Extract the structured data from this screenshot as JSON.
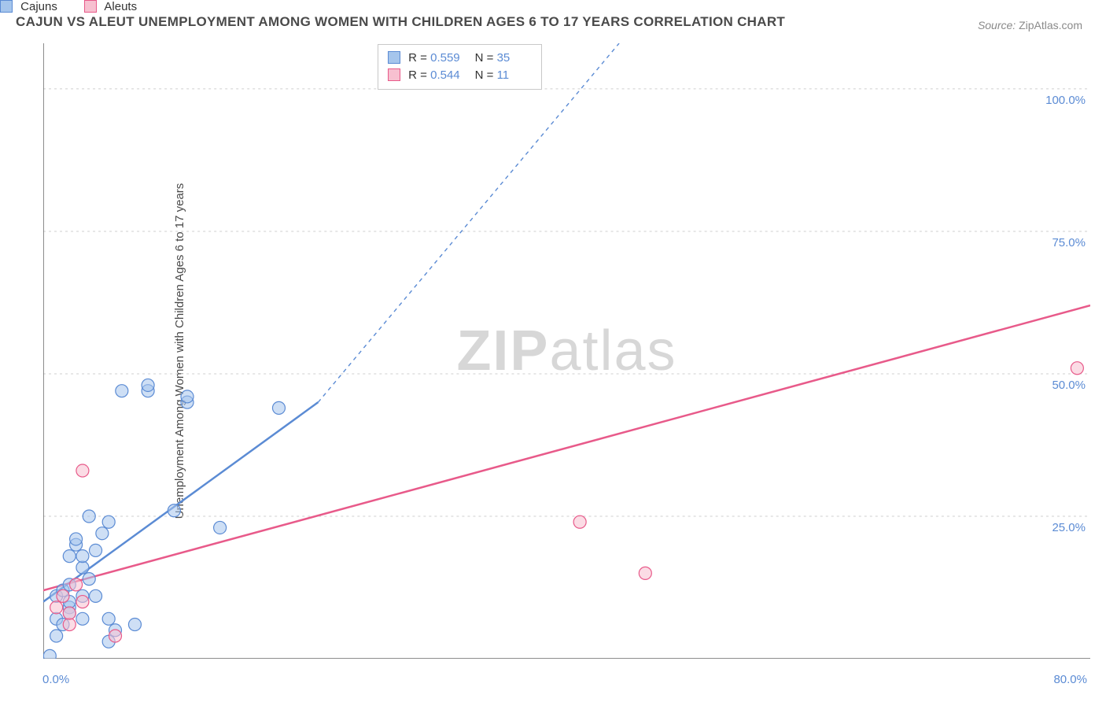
{
  "title": "CAJUN VS ALEUT UNEMPLOYMENT AMONG WOMEN WITH CHILDREN AGES 6 TO 17 YEARS CORRELATION CHART",
  "source_label": "Source:",
  "source_value": "ZipAtlas.com",
  "ylabel": "Unemployment Among Women with Children Ages 6 to 17 years",
  "watermark_a": "ZIP",
  "watermark_b": "atlas",
  "chart": {
    "type": "scatter",
    "background_color": "#ffffff",
    "grid_color": "#cfcfcf",
    "axis_color": "#666666",
    "xlim": [
      0,
      80
    ],
    "ylim": [
      0,
      108
    ],
    "x_tick_min_label": "0.0%",
    "x_tick_max_label": "80.0%",
    "y_gridlines": [
      {
        "v": 25,
        "label": "25.0%"
      },
      {
        "v": 50,
        "label": "50.0%"
      },
      {
        "v": 75,
        "label": "75.0%"
      },
      {
        "v": 100,
        "label": "100.0%"
      }
    ],
    "x_minor_ticks": [
      0,
      8,
      16,
      24,
      32,
      40,
      48,
      56,
      64,
      72,
      80
    ],
    "series": [
      {
        "name": "Cajuns",
        "color_fill": "#a5c5ec",
        "color_stroke": "#5b8bd4",
        "r_value": "0.559",
        "n_value": "35",
        "trend": {
          "x1": 0,
          "y1": 10,
          "x2": 21,
          "y2": 45,
          "dash_to_x": 44,
          "dash_to_y": 108
        },
        "points": [
          [
            0.5,
            0.5
          ],
          [
            1,
            7
          ],
          [
            1,
            11
          ],
          [
            1.5,
            12
          ],
          [
            2,
            9
          ],
          [
            2,
            10
          ],
          [
            2,
            13
          ],
          [
            2,
            18
          ],
          [
            2.5,
            20
          ],
          [
            2.5,
            21
          ],
          [
            3,
            7
          ],
          [
            3,
            16
          ],
          [
            3,
            18
          ],
          [
            3.5,
            25
          ],
          [
            4,
            11
          ],
          [
            4,
            19
          ],
          [
            4.5,
            22
          ],
          [
            5,
            3
          ],
          [
            5,
            7
          ],
          [
            5,
            24
          ],
          [
            5.5,
            5
          ],
          [
            6,
            47
          ],
          [
            7,
            6
          ],
          [
            8,
            47
          ],
          [
            8,
            48
          ],
          [
            10,
            26
          ],
          [
            11,
            45
          ],
          [
            11,
            46
          ],
          [
            13.5,
            23
          ],
          [
            18,
            44
          ],
          [
            1,
            4
          ],
          [
            1.5,
            6
          ],
          [
            2,
            8
          ],
          [
            3,
            11
          ],
          [
            3.5,
            14
          ]
        ]
      },
      {
        "name": "Aleuts",
        "color_fill": "#f7c0d0",
        "color_stroke": "#e85a8a",
        "r_value": "0.544",
        "n_value": "11",
        "trend": {
          "x1": 0,
          "y1": 12,
          "x2": 80,
          "y2": 62
        },
        "points": [
          [
            1,
            9
          ],
          [
            1.5,
            11
          ],
          [
            2,
            6
          ],
          [
            2,
            8
          ],
          [
            2.5,
            13
          ],
          [
            3,
            10
          ],
          [
            3,
            33
          ],
          [
            5.5,
            4
          ],
          [
            41,
            24
          ],
          [
            46,
            15
          ],
          [
            79,
            51
          ]
        ]
      }
    ]
  },
  "legend_top": {
    "r_label": "R =",
    "n_label": "N ="
  },
  "legend_bottom_label_a": "Cajuns",
  "legend_bottom_label_b": "Aleuts"
}
